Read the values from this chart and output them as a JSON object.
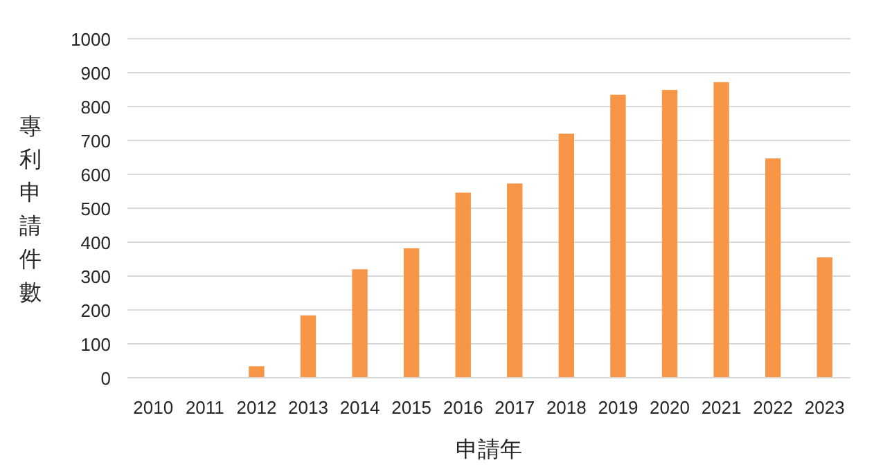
{
  "chart_data": {
    "type": "bar",
    "xlabel": "申請年",
    "ylabel": "專利申請件數",
    "categories": [
      "2010",
      "2011",
      "2012",
      "2013",
      "2014",
      "2015",
      "2016",
      "2017",
      "2018",
      "2019",
      "2020",
      "2021",
      "2022",
      "2023"
    ],
    "values": [
      0,
      0,
      34,
      184,
      320,
      382,
      546,
      573,
      720,
      835,
      849,
      872,
      647,
      355
    ],
    "color": "#f79646",
    "ylim": [
      0,
      1000
    ],
    "yticks": [
      0,
      100,
      200,
      300,
      400,
      500,
      600,
      700,
      800,
      900,
      1000
    ],
    "grid": "y"
  }
}
